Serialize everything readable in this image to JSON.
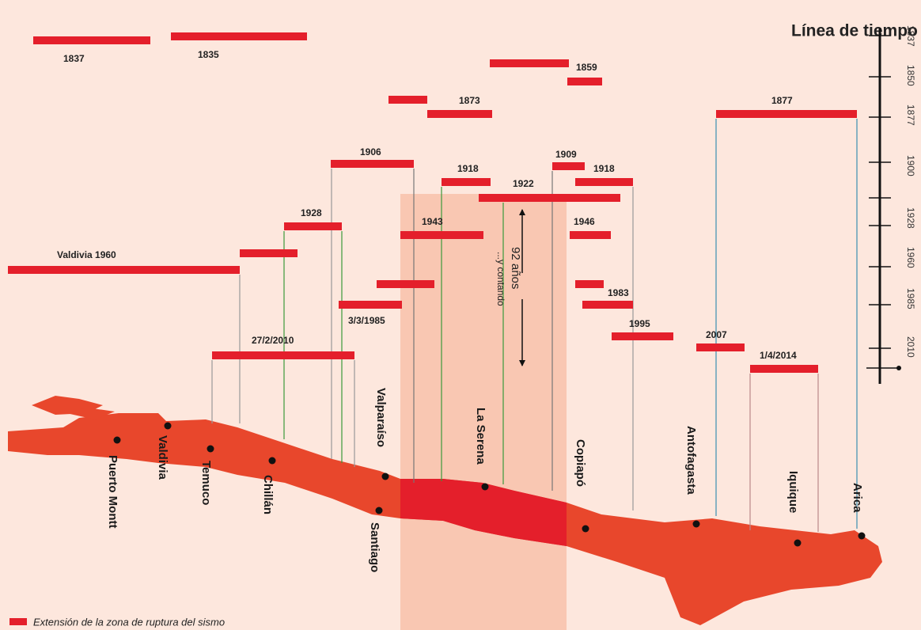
{
  "title": "Línea de tiempo",
  "timeline_labels": [
    "1837",
    "1850",
    "1877",
    "1900",
    "1928",
    "1960",
    "1985",
    "2010"
  ],
  "events": [
    "1837",
    "1835",
    "1859",
    "1873",
    "1877",
    "1906",
    "1909",
    "1918",
    "1922",
    "1918",
    "1928",
    "1943",
    "1946",
    "Valdivia 1960",
    "1983",
    "3/3/1985",
    "1995",
    "27/2/2010",
    "2007",
    "1/4/2014"
  ],
  "cities": [
    "Puerto Montt",
    "Valdivia",
    "Temuco",
    "Chillán",
    "Valparaíso",
    "Santiago",
    "La Serena",
    "Copiapó",
    "Antofagasta",
    "Iquique",
    "Arica"
  ],
  "annotation": {
    "duration": "92 años",
    "note": "...y contando"
  },
  "legend": "Extensión de la zona de ruptura del sismo"
}
